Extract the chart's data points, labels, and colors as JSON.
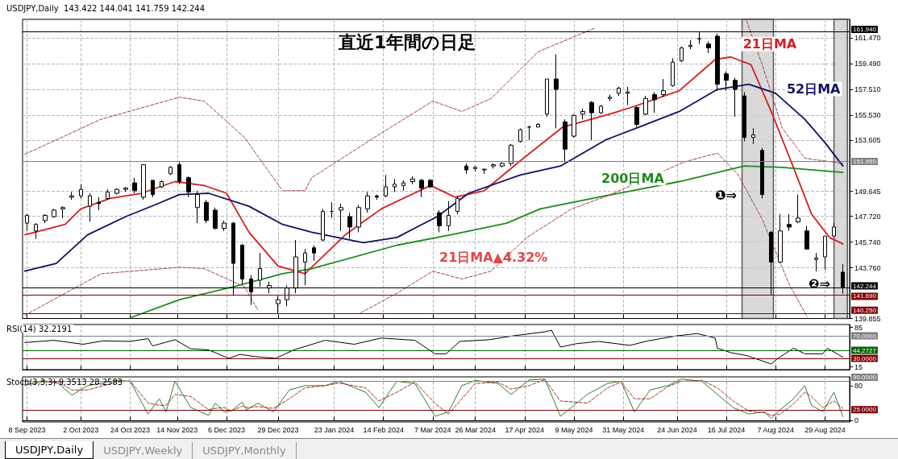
{
  "chart_data": [
    {
      "type": "candlestick",
      "title": "USDJPY,Daily  143.422 144.041 141.759 142.244",
      "subtitle": "直近1年間の日足",
      "color": "#000000",
      "x": [
        "2023-09-08",
        "2023-09-12",
        "2023-09-16",
        "2023-09-20",
        "2023-09-24",
        "2023-09-28",
        "2023-10-02",
        "2023-10-06",
        "2023-10-10",
        "2023-10-14",
        "2023-10-18",
        "2023-10-22",
        "2023-10-26",
        "2023-10-30",
        "2023-11-03",
        "2023-11-07",
        "2023-11-11",
        "2023-11-15",
        "2023-11-19",
        "2023-11-23",
        "2023-11-27",
        "2023-12-01",
        "2023-12-05",
        "2023-12-09",
        "2023-12-13",
        "2023-12-17",
        "2023-12-21",
        "2023-12-25",
        "2023-12-29",
        "2024-01-02",
        "2024-01-06",
        "2024-01-10",
        "2024-01-14",
        "2024-01-18",
        "2024-01-22",
        "2024-01-26",
        "2024-01-30",
        "2024-02-03",
        "2024-02-07",
        "2024-02-11",
        "2024-02-15",
        "2024-02-19",
        "2024-02-23",
        "2024-02-27",
        "2024-03-02",
        "2024-03-06",
        "2024-03-10",
        "2024-03-14",
        "2024-03-18",
        "2024-03-22",
        "2024-03-26",
        "2024-03-30",
        "2024-04-03",
        "2024-04-07",
        "2024-04-11",
        "2024-04-15",
        "2024-04-19",
        "2024-04-23",
        "2024-04-27",
        "2024-05-01",
        "2024-05-05",
        "2024-05-09",
        "2024-05-13",
        "2024-05-17",
        "2024-05-21",
        "2024-05-25",
        "2024-05-29",
        "2024-06-02",
        "2024-06-06",
        "2024-06-10",
        "2024-06-14",
        "2024-06-18",
        "2024-06-22",
        "2024-06-26",
        "2024-06-30",
        "2024-07-04",
        "2024-07-08",
        "2024-07-12",
        "2024-07-16",
        "2024-07-20",
        "2024-07-24",
        "2024-07-28",
        "2024-08-01",
        "2024-08-05",
        "2024-08-09",
        "2024-08-13",
        "2024-08-17",
        "2024-08-21",
        "2024-08-25",
        "2024-08-29",
        "2024-09-02",
        "2024-09-06"
      ],
      "ohlc": [
        [
          147.2,
          147.9,
          146.6,
          147.8
        ],
        [
          146.6,
          147.2,
          146.0,
          147.1
        ],
        [
          147.4,
          147.9,
          147.2,
          147.8
        ],
        [
          147.7,
          148.3,
          147.6,
          148.2
        ],
        [
          148.3,
          148.5,
          147.6,
          148.4
        ],
        [
          149.2,
          149.6,
          149.0,
          149.3
        ],
        [
          149.3,
          150.2,
          149.1,
          149.8
        ],
        [
          148.5,
          149.5,
          147.3,
          149.3
        ],
        [
          148.8,
          149.2,
          148.2,
          148.7
        ],
        [
          149.1,
          149.8,
          149.0,
          149.6
        ],
        [
          149.5,
          149.9,
          149.4,
          149.8
        ],
        [
          149.8,
          150.0,
          149.6,
          149.9
        ],
        [
          150.3,
          150.7,
          149.5,
          149.7
        ],
        [
          149.2,
          151.7,
          149.0,
          151.7
        ],
        [
          150.5,
          150.5,
          149.2,
          149.4
        ],
        [
          150.0,
          150.5,
          149.9,
          150.4
        ],
        [
          151.0,
          151.6,
          150.9,
          151.5
        ],
        [
          151.7,
          151.9,
          150.2,
          150.4
        ],
        [
          150.7,
          150.8,
          149.2,
          149.6
        ],
        [
          148.4,
          149.7,
          147.2,
          149.4
        ],
        [
          148.8,
          149.0,
          147.2,
          147.4
        ],
        [
          148.2,
          148.4,
          146.7,
          146.8
        ],
        [
          146.8,
          147.4,
          146.6,
          147.2
        ],
        [
          147.2,
          147.3,
          141.6,
          144.1
        ],
        [
          145.5,
          145.6,
          142.5,
          142.9
        ],
        [
          142.9,
          143.2,
          140.9,
          141.9
        ],
        [
          142.8,
          144.9,
          142.3,
          143.7
        ],
        [
          142.2,
          142.7,
          141.8,
          142.4
        ],
        [
          141.0,
          141.6,
          140.25,
          141.3
        ],
        [
          141.3,
          142.4,
          140.8,
          142.2
        ],
        [
          142.2,
          145.9,
          141.8,
          144.6
        ],
        [
          144.2,
          145.2,
          142.4,
          144.9
        ],
        [
          145.3,
          145.5,
          144.3,
          144.9
        ],
        [
          145.9,
          148.3,
          145.8,
          148.1
        ],
        [
          148.1,
          148.8,
          147.6,
          148.1
        ],
        [
          148.2,
          148.7,
          146.6,
          148.4
        ],
        [
          147.7,
          148.0,
          146.0,
          146.9
        ],
        [
          146.9,
          148.6,
          146.5,
          148.4
        ],
        [
          148.3,
          149.6,
          148.0,
          149.3
        ],
        [
          149.3,
          149.4,
          149.0,
          149.2
        ],
        [
          149.3,
          150.9,
          149.2,
          150.0
        ],
        [
          150.0,
          150.6,
          149.6,
          150.2
        ],
        [
          150.1,
          150.5,
          149.7,
          150.3
        ],
        [
          150.4,
          150.8,
          150.2,
          150.6
        ],
        [
          150.5,
          150.6,
          149.2,
          149.9
        ],
        [
          150.5,
          150.6,
          149.9,
          150.0
        ],
        [
          148.0,
          148.2,
          146.5,
          147.0
        ],
        [
          147.0,
          148.9,
          146.6,
          147.8
        ],
        [
          148.1,
          149.3,
          147.9,
          149.1
        ],
        [
          151.6,
          151.8,
          151.0,
          151.3
        ],
        [
          151.4,
          151.6,
          151.2,
          151.5
        ],
        [
          151.3,
          151.4,
          151.0,
          151.35
        ],
        [
          151.6,
          151.8,
          151.4,
          151.7
        ],
        [
          151.6,
          151.9,
          151.5,
          151.8
        ],
        [
          151.8,
          153.3,
          151.6,
          153.2
        ],
        [
          153.5,
          154.5,
          153.4,
          154.4
        ],
        [
          154.6,
          154.7,
          153.6,
          154.6
        ],
        [
          154.6,
          154.9,
          154.6,
          154.8
        ],
        [
          155.6,
          158.3,
          155.4,
          158.3
        ],
        [
          158.3,
          160.2,
          154.5,
          157.5
        ],
        [
          155.0,
          155.2,
          151.9,
          152.9
        ],
        [
          153.9,
          155.6,
          153.8,
          155.5
        ],
        [
          155.6,
          156.0,
          155.2,
          155.8
        ],
        [
          156.5,
          156.6,
          153.6,
          155.7
        ],
        [
          155.7,
          156.3,
          155.6,
          156.2
        ],
        [
          156.8,
          157.1,
          156.6,
          156.9
        ],
        [
          157.2,
          157.7,
          157.0,
          157.6
        ],
        [
          157.2,
          157.7,
          156.3,
          157.3
        ],
        [
          156.1,
          156.2,
          154.6,
          154.8
        ],
        [
          155.6,
          157.0,
          155.5,
          156.8
        ],
        [
          157.1,
          157.3,
          155.7,
          156.7
        ],
        [
          157.1,
          158.3,
          156.9,
          157.4
        ],
        [
          157.8,
          159.9,
          157.7,
          159.6
        ],
        [
          159.7,
          160.8,
          159.6,
          160.7
        ],
        [
          160.8,
          161.3,
          160.6,
          160.9
        ],
        [
          161.4,
          161.95,
          161.0,
          161.4
        ],
        [
          161.0,
          161.2,
          160.3,
          160.7
        ],
        [
          161.6,
          161.8,
          157.4,
          157.9
        ],
        [
          158.7,
          158.9,
          157.4,
          158.2
        ],
        [
          158.2,
          158.4,
          155.4,
          157.5
        ],
        [
          157.0,
          157.3,
          153.5,
          153.8
        ],
        [
          153.8,
          154.5,
          153.3,
          154.0
        ],
        [
          152.8,
          153.0,
          149.1,
          149.4
        ],
        [
          146.5,
          146.6,
          141.68,
          144.2
        ],
        [
          144.2,
          147.9,
          144.1,
          146.6
        ],
        [
          147.1,
          147.9,
          146.6,
          146.9
        ],
        [
          147.3,
          149.4,
          147.2,
          147.6
        ],
        [
          146.6,
          147.0,
          145.2,
          145.2
        ],
        [
          144.4,
          144.9,
          143.5,
          144.5
        ],
        [
          144.6,
          146.2,
          143.6,
          146.2
        ],
        [
          146.2,
          147.2,
          146.2,
          146.9
        ],
        [
          143.422,
          144.041,
          141.759,
          142.244
        ]
      ],
      "series": [
        {
          "type": "line",
          "name": "21日MA",
          "color": "#d42020",
          "x": [
            "2023-09-07",
            "2023-09-25",
            "2023-10-02",
            "2023-10-15",
            "2023-10-29",
            "2023-11-13",
            "2023-11-26",
            "2023-12-06",
            "2023-12-16",
            "2023-12-29",
            "2024-01-10",
            "2024-01-28",
            "2024-02-13",
            "2024-03-06",
            "2024-03-17",
            "2024-03-30",
            "2024-04-15",
            "2024-05-04",
            "2024-05-25",
            "2024-06-05",
            "2024-06-25",
            "2024-07-11",
            "2024-07-18",
            "2024-07-27",
            "2024-08-05",
            "2024-08-14",
            "2024-08-23",
            "2024-08-31",
            "2024-09-06"
          ],
          "values": [
            146.3,
            147.1,
            148.3,
            149.1,
            149.5,
            150.4,
            150.1,
            149.5,
            146.5,
            143.9,
            143.3,
            146.3,
            148.3,
            150.1,
            149.2,
            149.7,
            152.0,
            154.6,
            155.6,
            156.2,
            157.4,
            159.8,
            160.0,
            159.4,
            155.8,
            151.9,
            147.9,
            146.1,
            145.6
          ]
        },
        {
          "type": "line",
          "name": "52日MA",
          "color": "#101060",
          "x": [
            "2023-09-07",
            "2023-09-21",
            "2023-10-05",
            "2023-10-22",
            "2023-11-04",
            "2023-11-15",
            "2023-11-28",
            "2023-12-16",
            "2023-12-31",
            "2024-01-13",
            "2024-02-05",
            "2024-02-20",
            "2024-03-09",
            "2024-03-23",
            "2024-04-15",
            "2024-05-03",
            "2024-05-23",
            "2024-06-07",
            "2024-06-25",
            "2024-07-12",
            "2024-07-26",
            "2024-08-07",
            "2024-08-20",
            "2024-08-29",
            "2024-09-06"
          ],
          "values": [
            143.5,
            144.1,
            146.3,
            147.7,
            148.6,
            149.4,
            149.5,
            148.5,
            147.1,
            146.5,
            145.7,
            146.1,
            147.7,
            149.5,
            150.9,
            151.6,
            153.6,
            154.6,
            155.8,
            157.5,
            157.9,
            157.2,
            155.2,
            153.4,
            151.6
          ]
        },
        {
          "type": "line",
          "name": "200日MA",
          "color": "#1e8a1e",
          "x": [
            "2023-10-24",
            "2023-11-15",
            "2023-12-09",
            "2023-12-31",
            "2024-01-13",
            "2024-02-20",
            "2024-03-15",
            "2024-04-09",
            "2024-04-24",
            "2024-05-23",
            "2024-06-25",
            "2024-07-24",
            "2024-08-10",
            "2024-09-06"
          ],
          "values": [
            139.9,
            141.3,
            142.3,
            143.3,
            143.7,
            145.5,
            146.3,
            147.2,
            148.3,
            149.3,
            150.4,
            151.6,
            151.5,
            151.1
          ]
        },
        {
          "type": "line",
          "color": "#a04050",
          "line_style": "dashed",
          "x": [
            "2023-09-07",
            "2023-10-11",
            "2023-11-15",
            "2023-11-26",
            "2023-12-14",
            "2023-12-31",
            "2024-01-10",
            "2024-01-13",
            "2024-02-10",
            "2024-03-07",
            "2024-03-20",
            "2024-04-02",
            "2024-04-23",
            "2024-05-18"
          ],
          "values": [
            152.5,
            155.2,
            156.9,
            156.6,
            153.8,
            149.7,
            149.7,
            150.7,
            153.8,
            156.6,
            155.8,
            156.8,
            160.4,
            162.2
          ]
        },
        {
          "type": "line",
          "color": "#a04050",
          "line_style": "dashed",
          "x": [
            "2024-07-25",
            "2024-08-01",
            "2024-08-10",
            "2024-08-20",
            "2024-09-06"
          ],
          "values": [
            162.8,
            159.4,
            154.5,
            152.2,
            151.8
          ]
        },
        {
          "type": "line",
          "color": "#a04050",
          "line_style": "dashed",
          "x": [
            "2023-09-07",
            "2023-10-11",
            "2023-11-15",
            "2023-11-26",
            "2023-12-14",
            "2023-12-20"
          ],
          "values": [
            140.1,
            143.3,
            143.8,
            143.7,
            142.3,
            140.5
          ]
        },
        {
          "type": "line",
          "color": "#a04050",
          "line_style": "dashed",
          "x": [
            "2024-02-04",
            "2024-02-21",
            "2024-03-07",
            "2024-03-20",
            "2024-04-02",
            "2024-04-18",
            "2024-05-08",
            "2024-05-24",
            "2024-06-27",
            "2024-07-12",
            "2024-07-21",
            "2024-08-01",
            "2024-08-13",
            "2024-08-21"
          ],
          "values": [
            140.3,
            141.9,
            143.5,
            142.9,
            143.5,
            146.1,
            148.3,
            149.3,
            151.9,
            152.6,
            151.0,
            147.5,
            142.5,
            140.0
          ]
        }
      ],
      "xlim": [
        "2023-09-06",
        "2024-09-09"
      ],
      "xticks": [
        "2023-09-08",
        "2023-10-02",
        "2023-10-24",
        "2023-11-14",
        "2023-12-06",
        "2023-12-29",
        "2024-01-23",
        "2024-02-14",
        "2024-03-07",
        "2024-03-26",
        "2024-04-17",
        "2024-05-09",
        "2024-05-31",
        "2024-06-24",
        "2024-07-16",
        "2024-08-07",
        "2024-08-29"
      ],
      "ylim": [
        139.855,
        162.9
      ],
      "yticks": [
        {
          "value": 139.855,
          "label": "139.855"
        },
        {
          "value": 143.76,
          "label": "143.760"
        },
        {
          "value": 145.74,
          "label": "145.740"
        },
        {
          "value": 147.72,
          "label": "147.720"
        },
        {
          "value": 149.645,
          "label": "149.645"
        },
        {
          "value": 153.605,
          "label": "153.605"
        },
        {
          "value": 155.53,
          "label": "155.530"
        },
        {
          "value": 157.51,
          "label": "157.510"
        },
        {
          "value": 159.49,
          "label": "159.490"
        },
        {
          "value": 161.47,
          "label": "161.470"
        }
      ],
      "ref_lines": [
        {
          "axis": "y",
          "value": 161.94,
          "label": "161.940",
          "color": "#000000"
        },
        {
          "axis": "y",
          "value": 151.95,
          "label": "151.950",
          "color": "#808080"
        },
        {
          "axis": "y",
          "value": 142.244,
          "label": "142.244",
          "color": "#000000"
        },
        {
          "axis": "y",
          "value": 141.69,
          "label": "141.690",
          "color": "#800000"
        },
        {
          "axis": "y",
          "value": 140.25,
          "label": "140.250",
          "color": "#800000"
        }
      ],
      "bands": [
        {
          "axis": "x",
          "from": "2024-07-23",
          "to": "2024-08-06",
          "color": "#d0d0d0"
        },
        {
          "axis": "x",
          "from": "2024-09-02",
          "to": "2024-09-08",
          "color": "#d0d0d0"
        }
      ],
      "annotations": [
        "21日MA▲4.32%",
        "❶⇒",
        "❷⇒"
      ],
      "grid": true,
      "tick_labels": "y"
    },
    {
      "type": "line",
      "title": "RSI(14) 32.2191",
      "series": [
        {
          "color": "#000000",
          "x": [
            "2023-09-07",
            "2023-09-20",
            "2023-10-03",
            "2023-10-12",
            "2023-10-24",
            "2023-11-01",
            "2023-11-03",
            "2023-11-13",
            "2023-11-20",
            "2023-11-28",
            "2023-12-07",
            "2023-12-12",
            "2023-12-19",
            "2023-12-28",
            "2024-01-05",
            "2024-01-19",
            "2024-02-01",
            "2024-02-13",
            "2024-02-28",
            "2024-03-08",
            "2024-03-13",
            "2024-03-19",
            "2024-04-01",
            "2024-04-12",
            "2024-04-26",
            "2024-04-29",
            "2024-05-03",
            "2024-05-10",
            "2024-05-20",
            "2024-06-03",
            "2024-06-11",
            "2024-06-24",
            "2024-07-03",
            "2024-07-11",
            "2024-07-12",
            "2024-07-18",
            "2024-07-25",
            "2024-08-05",
            "2024-08-08",
            "2024-08-15",
            "2024-08-20",
            "2024-08-28",
            "2024-08-30",
            "2024-09-06"
          ],
          "values": [
            58,
            62,
            55,
            61,
            60,
            65,
            52,
            63,
            47,
            45,
            30,
            37,
            33,
            30,
            45,
            62,
            55,
            66,
            62,
            38,
            38,
            60,
            63,
            70,
            77,
            80,
            50,
            56,
            60,
            53,
            61,
            70,
            74,
            66,
            48,
            40,
            35,
            20,
            30,
            48,
            38,
            38,
            48,
            32
          ]
        }
      ],
      "xlim": [
        "2023-09-06",
        "2024-09-09"
      ],
      "xticks": [
        "2023-09-08",
        "2023-10-02",
        "2023-10-24",
        "2023-11-14",
        "2023-12-06",
        "2023-12-29",
        "2024-01-23",
        "2024-02-14",
        "2024-03-07",
        "2024-03-26",
        "2024-04-17",
        "2024-05-09",
        "2024-05-31",
        "2024-06-24",
        "2024-07-16",
        "2024-08-07",
        "2024-08-29"
      ],
      "ylim": [
        10,
        90
      ],
      "yticks": [
        15,
        85
      ],
      "ref_lines": [
        {
          "axis": "y",
          "value": 70,
          "label": "70.0000",
          "color": "#808080"
        },
        {
          "axis": "y",
          "value": 44.2727,
          "label": "44.2727",
          "color": "#006400"
        },
        {
          "axis": "y",
          "value": 30,
          "label": "30.0000",
          "color": "#800000"
        }
      ],
      "grid": "x",
      "tick_labels": "y"
    },
    {
      "type": "line",
      "title": "Stoch(3,3,3) 9.3513 28.2583",
      "series": [
        {
          "color": "#2e7d2e",
          "x": [
            "2023-09-07",
            "2023-09-15",
            "2023-09-22",
            "2023-09-28",
            "2023-10-05",
            "2023-10-18",
            "2023-10-24",
            "2023-11-01",
            "2023-11-06",
            "2023-11-09",
            "2023-11-13",
            "2023-11-20",
            "2023-11-28",
            "2023-12-01",
            "2023-12-05",
            "2023-12-08",
            "2023-12-13",
            "2023-12-15",
            "2023-12-20",
            "2023-12-27",
            "2024-01-03",
            "2024-01-10",
            "2024-01-19",
            "2024-01-25",
            "2024-02-06",
            "2024-02-12",
            "2024-02-20",
            "2024-02-28",
            "2024-03-08",
            "2024-03-14",
            "2024-03-20",
            "2024-03-26",
            "2024-04-05",
            "2024-04-11",
            "2024-04-19",
            "2024-04-26",
            "2024-05-03",
            "2024-05-15",
            "2024-05-24",
            "2024-05-30",
            "2024-06-05",
            "2024-06-12",
            "2024-06-20",
            "2024-06-26",
            "2024-07-05",
            "2024-07-12",
            "2024-07-19",
            "2024-07-26",
            "2024-08-02",
            "2024-08-05",
            "2024-08-09",
            "2024-08-15",
            "2024-08-20",
            "2024-08-23",
            "2024-08-28",
            "2024-09-02",
            "2024-09-06"
          ],
          "values": [
            80,
            92,
            85,
            58,
            80,
            92,
            90,
            15,
            50,
            20,
            90,
            30,
            12,
            40,
            20,
            22,
            42,
            25,
            40,
            20,
            70,
            80,
            80,
            90,
            65,
            30,
            90,
            85,
            10,
            20,
            80,
            92,
            85,
            60,
            93,
            95,
            10,
            60,
            85,
            90,
            20,
            70,
            80,
            95,
            90,
            60,
            30,
            15,
            20,
            5,
            25,
            50,
            80,
            35,
            20,
            65,
            9
          ]
        },
        {
          "color": "#a03030",
          "line_style": "dashed",
          "x": [
            "2023-09-07",
            "2023-09-15",
            "2023-09-22",
            "2023-09-28",
            "2023-10-05",
            "2023-10-18",
            "2023-10-24",
            "2023-11-01",
            "2023-11-06",
            "2023-11-09",
            "2023-11-13",
            "2023-11-20",
            "2023-11-28",
            "2023-12-01",
            "2023-12-05",
            "2023-12-08",
            "2023-12-13",
            "2023-12-15",
            "2023-12-20",
            "2023-12-27",
            "2024-01-03",
            "2024-01-10",
            "2024-01-19",
            "2024-01-25",
            "2024-02-06",
            "2024-02-12",
            "2024-02-20",
            "2024-02-28",
            "2024-03-08",
            "2024-03-14",
            "2024-03-20",
            "2024-03-26",
            "2024-04-05",
            "2024-04-11",
            "2024-04-19",
            "2024-04-26",
            "2024-05-03",
            "2024-05-15",
            "2024-05-24",
            "2024-05-30",
            "2024-06-05",
            "2024-06-12",
            "2024-06-20",
            "2024-06-26",
            "2024-07-05",
            "2024-07-12",
            "2024-07-19",
            "2024-07-26",
            "2024-08-02",
            "2024-08-05",
            "2024-08-09",
            "2024-08-15",
            "2024-08-20",
            "2024-08-23",
            "2024-08-28",
            "2024-09-02",
            "2024-09-06"
          ],
          "values": [
            82,
            88,
            88,
            70,
            70,
            88,
            91,
            40,
            35,
            35,
            60,
            55,
            25,
            28,
            30,
            22,
            33,
            30,
            32,
            28,
            50,
            75,
            80,
            86,
            75,
            45,
            65,
            88,
            40,
            15,
            50,
            85,
            88,
            72,
            80,
            94,
            45,
            40,
            75,
            88,
            50,
            50,
            78,
            90,
            92,
            75,
            45,
            22,
            18,
            12,
            15,
            38,
            65,
            55,
            30,
            45,
            28
          ]
        }
      ],
      "xlim": [
        "2023-09-06",
        "2024-09-09"
      ],
      "xticks": [
        {
          "value": "2023-09-08",
          "label": "8 Sep 2023"
        },
        {
          "value": "2023-10-02",
          "label": "2 Oct 2023"
        },
        {
          "value": "2023-10-24",
          "label": "24 Oct 2023"
        },
        {
          "value": "2023-11-14",
          "label": "14 Nov 2023"
        },
        {
          "value": "2023-12-06",
          "label": "6 Dec 2023"
        },
        {
          "value": "2023-12-29",
          "label": "29 Dec 2023"
        },
        {
          "value": "2024-01-23",
          "label": "23 Jan 2024"
        },
        {
          "value": "2024-02-14",
          "label": "14 Feb 2024"
        },
        {
          "value": "2024-03-07",
          "label": "7 Mar 2024"
        },
        {
          "value": "2024-03-26",
          "label": "26 Mar 2024"
        },
        {
          "value": "2024-04-17",
          "label": "17 Apr 2024"
        },
        {
          "value": "2024-05-09",
          "label": "9 May 2024"
        },
        {
          "value": "2024-05-31",
          "label": "31 May 2024"
        },
        {
          "value": "2024-06-24",
          "label": "24 Jun 2024"
        },
        {
          "value": "2024-07-16",
          "label": "16 Jul 2024"
        },
        {
          "value": "2024-08-07",
          "label": "7 Aug 2024"
        },
        {
          "value": "2024-08-29",
          "label": "29 Aug 2024"
        }
      ],
      "ylim": [
        -3,
        100
      ],
      "yticks": [
        0,
        80
      ],
      "ref_lines": [
        {
          "axis": "y",
          "value": 90,
          "label": "90.0000",
          "color": "#808080"
        },
        {
          "axis": "y",
          "value": 25,
          "label": "25.0000",
          "color": "#800000"
        }
      ],
      "grid": "x"
    },
    {
      "type": "other",
      "annotations": [
        "USDJPY,Daily",
        "USDJPY,Weekly",
        "USDJPY,Monthly"
      ]
    }
  ]
}
